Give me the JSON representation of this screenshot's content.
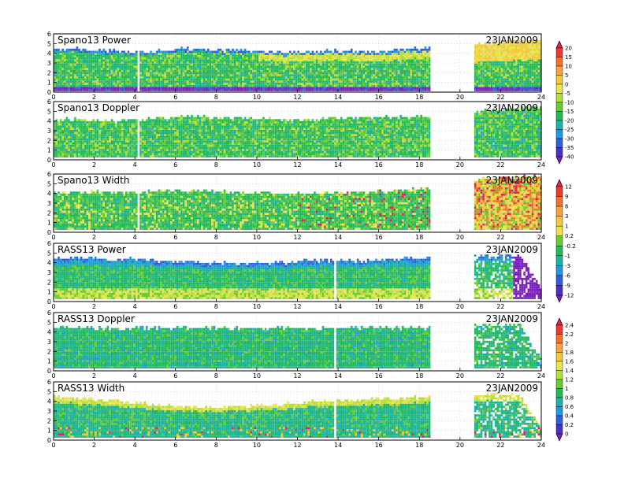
{
  "chart_data": {
    "type": "heatmap",
    "xlim": [
      0,
      24
    ],
    "ylim": [
      0,
      6
    ],
    "xticks": [
      "0",
      "2",
      "4",
      "6",
      "8",
      "10",
      "12",
      "14",
      "16",
      "18",
      "20",
      "22",
      "24"
    ],
    "yticks": [
      "0",
      "1",
      "2",
      "3",
      "4",
      "5",
      "6"
    ],
    "panels": [
      {
        "title": "Spano13 Power",
        "date": "23JAN2009",
        "scale": "s1",
        "top_km": [
          4.3,
          4.4,
          4.2,
          4.1,
          4.0,
          4.2,
          4.4,
          4.3,
          4.2,
          4.2,
          4.1,
          4.0,
          4.0,
          4.1,
          4.1,
          4.1,
          4.2,
          4.3,
          4.4
        ],
        "right_top_km": [
          4.9,
          5.0,
          5.1,
          5.2
        ],
        "gaps_x": [
          4.1
        ],
        "purple_base": true
      },
      {
        "title": "Spano13 Doppler",
        "date": "23JAN2009",
        "scale": "s1",
        "top_km": [
          4.0,
          4.1,
          3.9,
          3.9,
          4.0,
          4.2,
          4.4,
          4.3,
          4.2,
          4.2,
          4.1,
          4.0,
          4.0,
          4.1,
          4.2,
          4.3,
          4.3,
          4.3,
          4.4
        ],
        "right_top_km": [
          4.9,
          5.1,
          5.2,
          5.4
        ],
        "gaps_x": [
          4.1
        ],
        "purple_base": false
      },
      {
        "title": "Spano13 Width",
        "date": "23JAN2009",
        "scale": "s2",
        "top_km": [
          4.0,
          4.0,
          4.1,
          4.0,
          4.0,
          4.2,
          4.2,
          4.1,
          4.1,
          4.0,
          4.0,
          3.9,
          3.9,
          3.9,
          4.0,
          4.0,
          4.1,
          4.3,
          4.4
        ],
        "right_top_km": [
          5.4,
          5.5,
          5.6,
          5.7
        ],
        "gaps_x": [
          4.1
        ],
        "purple_base": false
      },
      {
        "title": "RASS13 Power",
        "date": "23JAN2009",
        "scale": "s2",
        "top_km": [
          4.4,
          4.4,
          4.3,
          4.2,
          4.3,
          4.1,
          4.0,
          3.9,
          3.8,
          3.8,
          3.9,
          3.9,
          4.1,
          4.1,
          4.1,
          4.1,
          4.2,
          4.3,
          4.4
        ],
        "right_top_km": [
          4.6,
          4.6,
          4.6,
          1.2
        ],
        "gaps_x": [
          13.8
        ],
        "purple_base": false
      },
      {
        "title": "RASS13 Doppler",
        "date": "23JAN2009",
        "scale": "s3",
        "top_km": [
          4.3,
          4.3,
          4.3,
          4.3,
          4.3,
          4.3,
          4.3,
          4.3,
          4.3,
          4.3,
          4.3,
          4.3,
          4.3,
          4.3,
          4.3,
          4.3,
          4.3,
          4.3,
          4.3
        ],
        "right_top_km": [
          4.6,
          4.6,
          4.6,
          1.0
        ],
        "gaps_x": [
          13.8
        ],
        "purple_base": false
      },
      {
        "title": "RASS13 Width",
        "date": "23JAN2009",
        "scale": "s3",
        "top_km": [
          4.3,
          4.2,
          4.1,
          3.9,
          3.7,
          3.5,
          3.4,
          3.3,
          3.3,
          3.4,
          3.5,
          3.6,
          3.8,
          3.9,
          4.0,
          4.1,
          4.2,
          4.3,
          4.4
        ],
        "right_top_km": [
          4.6,
          4.6,
          4.6,
          1.0
        ],
        "gaps_x": [
          13.8
        ],
        "purple_base": false
      }
    ],
    "data_x_ranges": [
      [
        0,
        18.5
      ],
      [
        20.7,
        24
      ]
    ],
    "colorbars": [
      {
        "id": "s1",
        "labels": [
          "20",
          "15",
          "10",
          "5",
          "0",
          "-5",
          "-10",
          "-15",
          "-20",
          "-25",
          "-30",
          "-35",
          "-40"
        ],
        "colors": [
          "#e0205a",
          "#ec3a2a",
          "#f2702a",
          "#f5a33a",
          "#f1c93a",
          "#e6e34e",
          "#b5de3a",
          "#66cc33",
          "#22bb55",
          "#1ab4a6",
          "#2098e0",
          "#2f5fe0",
          "#4b30c8",
          "#7a1ec0"
        ]
      },
      {
        "id": "s2",
        "labels": [
          "12",
          "9",
          "6",
          "3",
          "1",
          "0.2",
          "-0.2",
          "-1",
          "-3",
          "-6",
          "-9",
          "-12"
        ],
        "colors": [
          "#e0205a",
          "#ec3a2a",
          "#f2702a",
          "#f5a33a",
          "#f1c93a",
          "#e6e34e",
          "#66cc33",
          "#22bb55",
          "#1ab4a6",
          "#2098e0",
          "#2f5fe0",
          "#4b30c8",
          "#7a1ec0"
        ]
      },
      {
        "id": "s3",
        "labels": [
          "2.4",
          "2.2",
          "2",
          "1.8",
          "1.6",
          "1.4",
          "1.2",
          "1",
          "0.8",
          "0.6",
          "0.4",
          "0.2",
          "0"
        ],
        "colors": [
          "#e0205a",
          "#ec3a2a",
          "#f2702a",
          "#f5a33a",
          "#f1c93a",
          "#e6e34e",
          "#b5de3a",
          "#66cc33",
          "#22bb55",
          "#1ab4a6",
          "#2098e0",
          "#2f5fe0",
          "#4b30c8",
          "#7a1ec0"
        ]
      }
    ]
  }
}
